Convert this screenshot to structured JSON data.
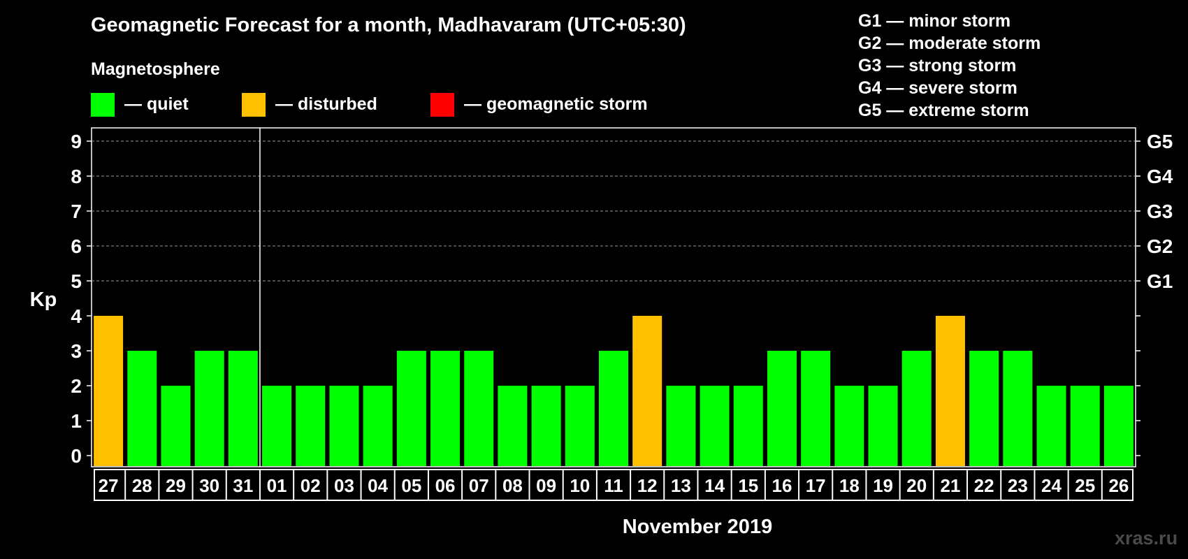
{
  "header": {
    "title": "Geomagnetic Forecast for a month, Madhavaram (UTC+05:30)",
    "subtitle": "Magnetosphere"
  },
  "legend": [
    {
      "color": "#00ff00",
      "label": "— quiet"
    },
    {
      "color": "#ffc000",
      "label": "— disturbed"
    },
    {
      "color": "#ff0000",
      "label": "— geomagnetic storm"
    }
  ],
  "g_scale": [
    "G1 — minor storm",
    "G2 — moderate storm",
    "G3 — strong storm",
    "G4 — severe storm",
    "G5 — extreme storm"
  ],
  "watermark": "xras.ru",
  "chart_data": {
    "type": "bar",
    "ylabel": "Kp",
    "xlabel": "November 2019",
    "ylim": [
      0,
      9
    ],
    "yticks": [
      0,
      1,
      2,
      3,
      4,
      5,
      6,
      7,
      8,
      9
    ],
    "right_axis": [
      {
        "kp": 5,
        "label": "G1"
      },
      {
        "kp": 6,
        "label": "G2"
      },
      {
        "kp": 7,
        "label": "G3"
      },
      {
        "kp": 8,
        "label": "G4"
      },
      {
        "kp": 9,
        "label": "G5"
      }
    ],
    "month_divider_after": "31",
    "categories": [
      "27",
      "28",
      "29",
      "30",
      "31",
      "01",
      "02",
      "03",
      "04",
      "05",
      "06",
      "07",
      "08",
      "09",
      "10",
      "11",
      "12",
      "13",
      "14",
      "15",
      "16",
      "17",
      "18",
      "19",
      "20",
      "21",
      "22",
      "23",
      "24",
      "25",
      "26"
    ],
    "values": [
      4,
      3,
      2,
      3,
      3,
      2,
      2,
      2,
      2,
      3,
      3,
      3,
      2,
      2,
      2,
      3,
      4,
      2,
      2,
      2,
      3,
      3,
      2,
      2,
      3,
      4,
      3,
      3,
      2,
      2,
      2
    ],
    "colors": {
      "quiet": "#00ff00",
      "disturbed": "#ffc000",
      "storm": "#ff0000"
    },
    "grid": "dashed at Kp 5-9"
  }
}
